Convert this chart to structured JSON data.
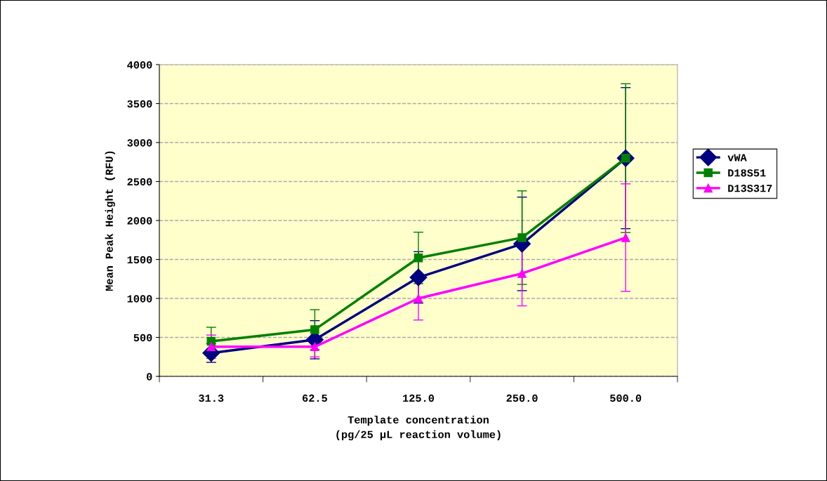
{
  "chart_data": {
    "type": "line",
    "xlabel": "Template concentration\n(pg/25 µL reaction volume)",
    "ylabel": "Mean Peak Height (RFU)",
    "categories": [
      "31.3",
      "62.5",
      "125.0",
      "250.0",
      "500.0"
    ],
    "series": [
      {
        "name": "vWA",
        "color": "#000080",
        "marker": "diamond",
        "values": [
          300,
          470,
          1270,
          1700,
          2800
        ],
        "errors": [
          120,
          245,
          330,
          600,
          905
        ]
      },
      {
        "name": "D18S51",
        "color": "#008000",
        "marker": "square",
        "values": [
          450,
          600,
          1520,
          1780,
          2800
        ],
        "errors": [
          180,
          256,
          330,
          600,
          955
        ]
      },
      {
        "name": "D13S317",
        "color": "#ff00ff",
        "marker": "triangle",
        "values": [
          380,
          380,
          1000,
          1320,
          1780
        ],
        "errors": [
          150,
          130,
          277,
          415,
          690
        ]
      }
    ],
    "ylim": [
      0,
      4000
    ],
    "yticks": [
      0,
      500,
      1000,
      1500,
      2000,
      2500,
      3000,
      3500,
      4000
    ],
    "grid": "y",
    "legend": "right",
    "line_style": "solid"
  }
}
